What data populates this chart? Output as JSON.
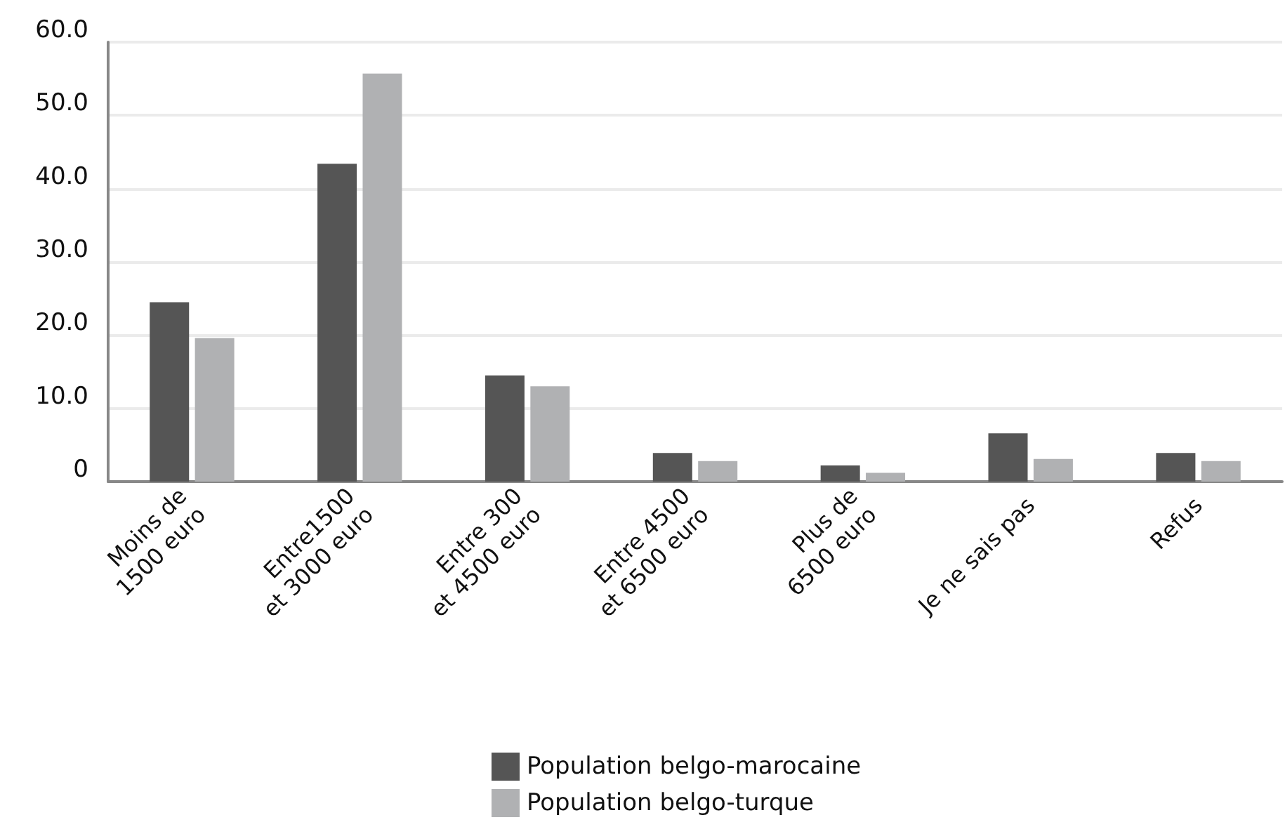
{
  "chart_data": {
    "type": "bar",
    "categories": [
      "Moins de\n1500 euro",
      "Entre1500\net 3000 euro",
      "Entre 300\net 4500 euro",
      "Entre 4500\net 6500 euro",
      "Plus de\n6500 euro",
      "Je ne sais pas",
      "Refus"
    ],
    "series": [
      {
        "name": "Population belgo-marocaine",
        "color": "#555555",
        "values": [
          24.5,
          43.4,
          14.5,
          3.9,
          2.2,
          6.6,
          3.9
        ]
      },
      {
        "name": "Population belgo-turque",
        "color": "#b0b1b3",
        "values": [
          19.6,
          55.7,
          13.0,
          2.8,
          1.2,
          3.1,
          2.8
        ]
      }
    ],
    "ylim": [
      0,
      60
    ],
    "yticks": [
      {
        "value": 0,
        "label": "0"
      },
      {
        "value": 10,
        "label": "10.0"
      },
      {
        "value": 20,
        "label": "20.0"
      },
      {
        "value": 30,
        "label": "30.0"
      },
      {
        "value": 40,
        "label": "40.0"
      },
      {
        "value": 50,
        "label": "50.0"
      },
      {
        "value": 60,
        "label": "60.0"
      }
    ],
    "grid": "y",
    "legend": "bottom"
  }
}
